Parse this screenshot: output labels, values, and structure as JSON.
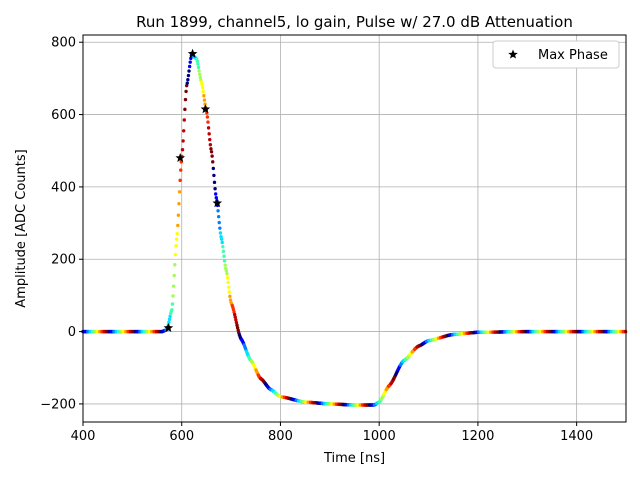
{
  "chart_data": {
    "type": "scatter",
    "title": "Run 1899, channel5, lo gain, Pulse w/ 27.0 dB Attenuation",
    "xlabel": "Time [ns]",
    "ylabel": "Amplitude [ADC Counts]",
    "xlim": [
      400,
      1500
    ],
    "ylim": [
      -250,
      820
    ],
    "xticks": [
      400,
      600,
      800,
      1000,
      1200,
      1400
    ],
    "yticks": [
      -200,
      0,
      200,
      400,
      600,
      800
    ],
    "xtick_labels": [
      "400",
      "600",
      "800",
      "1000",
      "1200",
      "1400"
    ],
    "ytick_labels": [
      "−200",
      "0",
      "200",
      "400",
      "600",
      "800"
    ],
    "grid": true,
    "legend": {
      "location": "upper right",
      "entries": [
        "Max Phase"
      ]
    },
    "pulse_curve": [
      [
        400,
        0
      ],
      [
        560,
        0
      ],
      [
        570,
        5
      ],
      [
        580,
        60
      ],
      [
        590,
        260
      ],
      [
        600,
        480
      ],
      [
        610,
        680
      ],
      [
        620,
        765
      ],
      [
        630,
        755
      ],
      [
        640,
        690
      ],
      [
        650,
        610
      ],
      [
        660,
        500
      ],
      [
        670,
        370
      ],
      [
        680,
        260
      ],
      [
        690,
        170
      ],
      [
        700,
        80
      ],
      [
        720,
        -20
      ],
      [
        740,
        -80
      ],
      [
        760,
        -130
      ],
      [
        780,
        -160
      ],
      [
        800,
        -180
      ],
      [
        850,
        -195
      ],
      [
        900,
        -200
      ],
      [
        950,
        -203
      ],
      [
        990,
        -203
      ],
      [
        1000,
        -195
      ],
      [
        1020,
        -150
      ],
      [
        1050,
        -80
      ],
      [
        1080,
        -40
      ],
      [
        1100,
        -25
      ],
      [
        1150,
        -8
      ],
      [
        1200,
        -2
      ],
      [
        1300,
        0
      ],
      [
        1500,
        0
      ]
    ],
    "max_phase_points": [
      [
        573,
        10
      ],
      [
        597,
        480
      ],
      [
        622,
        768
      ],
      [
        648,
        615
      ],
      [
        672,
        355
      ]
    ]
  }
}
